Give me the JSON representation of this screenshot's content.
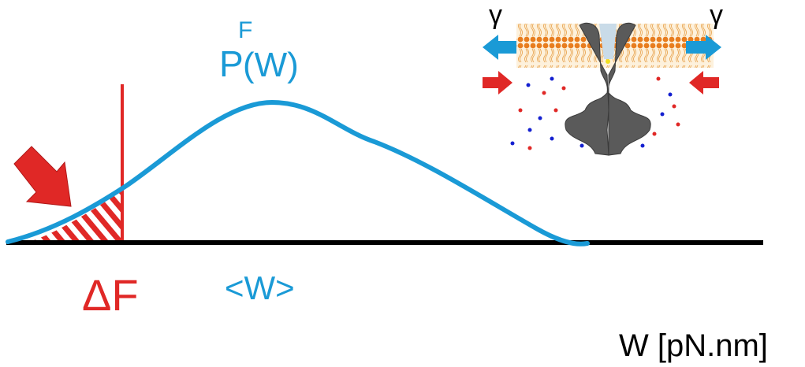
{
  "curve_label": {
    "base": "P",
    "superscript": "F",
    "argument": "(W)"
  },
  "free_energy_label": "ΔF",
  "mean_work_label": "<W>",
  "axis_label": "W [pN.nm]",
  "inset": {
    "tension_left": "γ",
    "tension_right": "γ"
  }
}
